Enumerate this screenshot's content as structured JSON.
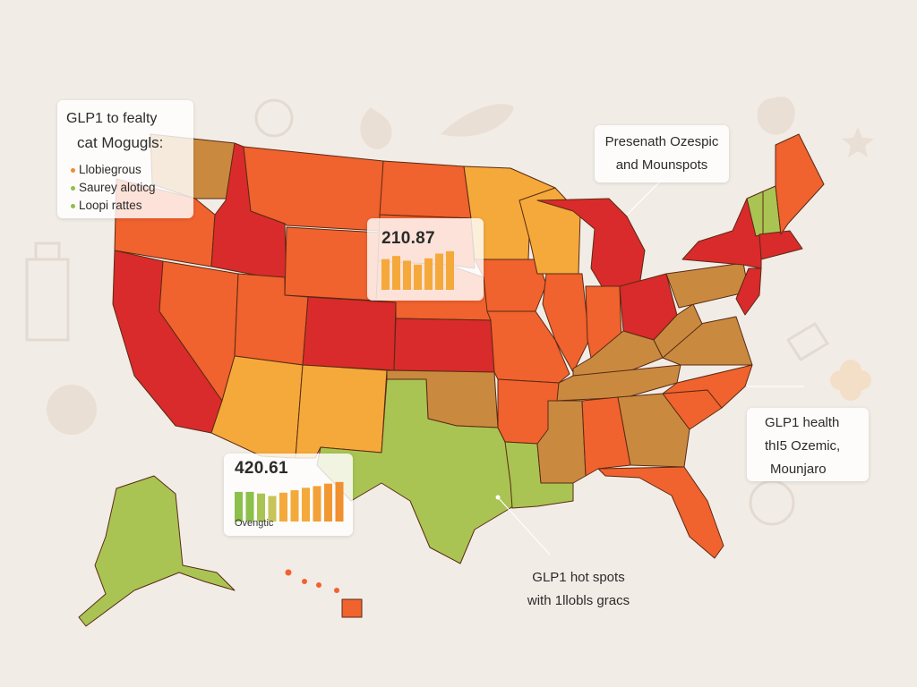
{
  "legend": {
    "title_line1": "GLP1 to fealty",
    "title_line2": "cat Mogugls:",
    "items": [
      {
        "label": "Llobiegrous",
        "color": "#f08a30"
      },
      {
        "label": "Saurey aloticg",
        "color": "#8cc04a"
      },
      {
        "label": "Loopi rattes",
        "color": "#8cc04a"
      }
    ]
  },
  "notes": {
    "top_right": {
      "line1": "Presenath Ozespic",
      "line2": "and Mounspots"
    },
    "right": {
      "line1": "GLP1 health",
      "line2": "thI5 Ozemic,",
      "line3": "Mounjaro"
    },
    "bottom": {
      "line1": "GLP1 hot spots",
      "line2": "with 1llobls gracs"
    }
  },
  "charts": [
    {
      "value": "210.87",
      "label": "",
      "bars": [
        0.78,
        0.86,
        0.74,
        0.64,
        0.8,
        0.92,
        0.98
      ],
      "colors": [
        "#f4a93a",
        "#f4a93a",
        "#f4a93a",
        "#f4a93a",
        "#f4a93a",
        "#f4a93a",
        "#f4a93a"
      ]
    },
    {
      "value": "420.61",
      "label": "Ovengtic",
      "bars": [
        0.72,
        0.72,
        0.68,
        0.62,
        0.7,
        0.76,
        0.82,
        0.86,
        0.92,
        0.96
      ],
      "colors": [
        "#8cc04a",
        "#8cc04a",
        "#a9c453",
        "#c7c45a",
        "#f4a93a",
        "#f4a93a",
        "#f4a93a",
        "#f2a037",
        "#f19833",
        "#f0902e"
      ]
    }
  ],
  "colors": {
    "very_high": "#d92b2b",
    "high": "#f0622e",
    "medium_high": "#f08a30",
    "medium": "#f4a93a",
    "brown": "#c98a3f",
    "low": "#a9c453",
    "background": "#f2ece6"
  },
  "icons": [
    "apple-icon",
    "bottle-icon",
    "pear-icon",
    "carrot-icon",
    "star-icon",
    "flower-icon",
    "globe-icon",
    "pill-icon",
    "ball-icon",
    "chart-icon"
  ]
}
